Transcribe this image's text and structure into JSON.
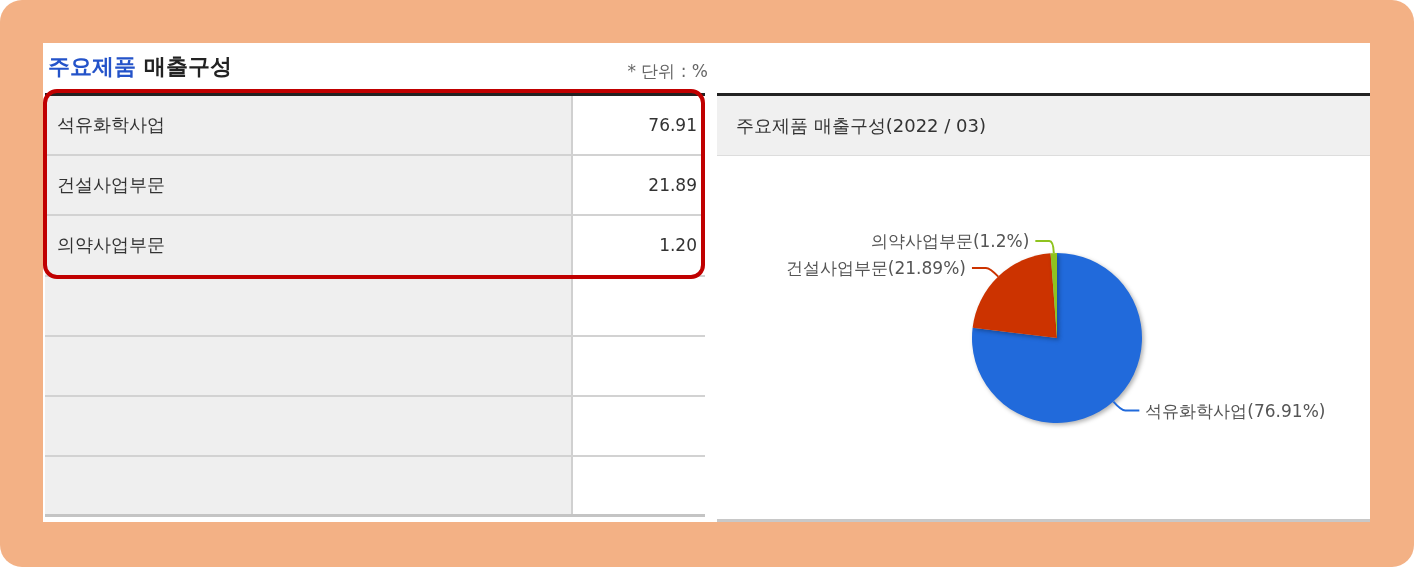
{
  "chart_data": [
    {
      "type": "other",
      "title": "주요제품 매출구성",
      "annotations": [
        "* 단위 : %"
      ],
      "categories": [
        "석유화학사업",
        "건설사업부문",
        "의약사업부문"
      ],
      "value_labels": [
        "76.91",
        "21.89",
        "1.20"
      ]
    },
    {
      "type": "pie",
      "title": "주요제품 매출구성(2022 / 03)",
      "categories": [
        "석유화학사업",
        "건설사업부문",
        "의약사업부문"
      ],
      "values": [
        76.91,
        21.89,
        1.2
      ],
      "colors": [
        "#216adb",
        "#cc3300",
        "#8fc31f"
      ],
      "value_labels": [
        "(76.91%)",
        "(21.89%)",
        "(1.2%)"
      ]
    }
  ]
}
